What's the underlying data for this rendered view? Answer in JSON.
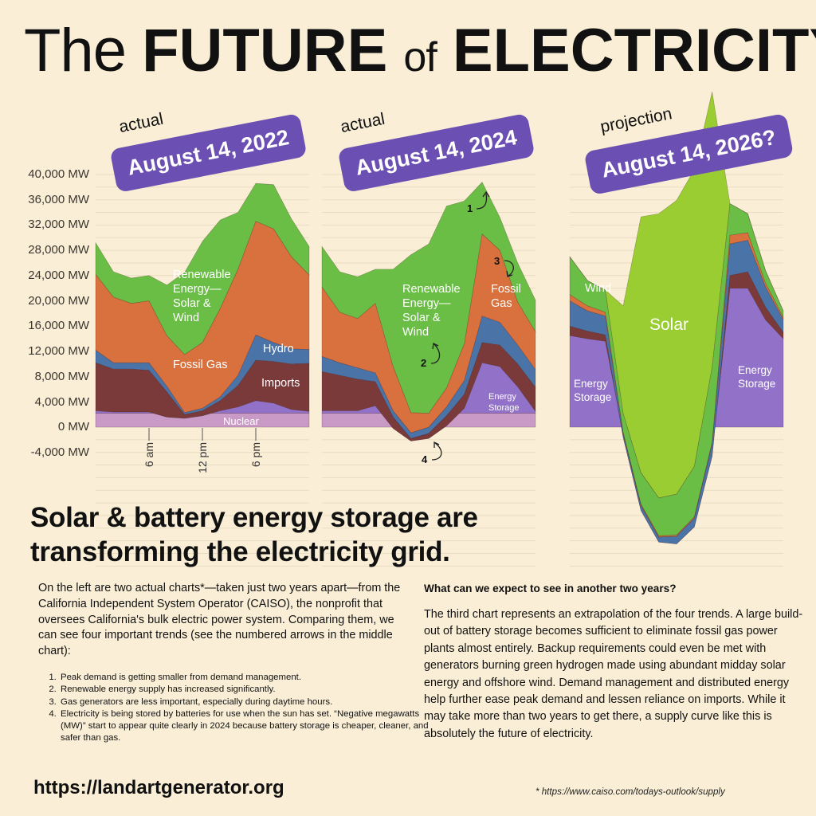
{
  "title": {
    "part1": "The",
    "part2": "FUTURE",
    "part3": "of",
    "part4": "ELECTRICITY"
  },
  "colors": {
    "background": "#faefd6",
    "gridline": "#e8dcc2",
    "badge": "#6b4fb3",
    "solar_wind": "#6abe45",
    "solar_light": "#9acd32",
    "fossil_gas": "#d9713f",
    "hydro": "#4a74a8",
    "imports": "#7b3a3a",
    "nuclear": "#c99ac6",
    "energy_storage": "#9272c8"
  },
  "y_axis": {
    "labels": [
      "40,000 MW",
      "36,000 MW",
      "32,000 MW",
      "28,000 MW",
      "24,000 MW",
      "20,000 MW",
      "16,000 MW",
      "12,000 MW",
      "8,000 MW",
      "4,000 MW",
      "0 MW",
      "-4,000 MW"
    ],
    "values": [
      40000,
      36000,
      32000,
      28000,
      24000,
      20000,
      16000,
      12000,
      8000,
      4000,
      0,
      -4000
    ]
  },
  "x_axis": {
    "labels": [
      "6 am",
      "12 pm",
      "6 pm"
    ]
  },
  "charts": [
    {
      "kind": "actual",
      "date": "August 14, 2022",
      "labels": {
        "renewable": "Renewable Energy— Solar & Wind",
        "fossil": "Fossil Gas",
        "hydro": "Hydro",
        "imports": "Imports",
        "nuclear": "Nuclear"
      }
    },
    {
      "kind": "actual",
      "date": "August 14, 2024",
      "labels": {
        "renewable": "Renewable Energy— Solar & Wind",
        "fossil": "Fossil Gas",
        "storage": "Energy Storage"
      },
      "annotations": [
        "1",
        "2",
        "3",
        "4"
      ]
    },
    {
      "kind": "projection",
      "date": "August 14, 2026?",
      "labels": {
        "wind": "Wind",
        "solar": "Solar",
        "storage_left": "Energy Storage",
        "storage_right": "Energy Storage"
      }
    }
  ],
  "chart_data": [
    {
      "type": "area",
      "title": "actual — August 14, 2022",
      "xlabel": "",
      "ylabel": "MW",
      "ylim": [
        -4000,
        40000
      ],
      "x": [
        0,
        2,
        4,
        6,
        8,
        10,
        12,
        14,
        16,
        18,
        20,
        22,
        24
      ],
      "x_ticks": {
        "6": "6 am",
        "12": "12 pm",
        "18": "6 pm"
      },
      "stacked": true,
      "series": [
        {
          "name": "Nuclear",
          "values": [
            2200,
            2200,
            2200,
            2200,
            2200,
            2200,
            2200,
            2200,
            2200,
            2200,
            2200,
            2200,
            2200
          ]
        },
        {
          "name": "Energy Storage / Batteries",
          "values": [
            400,
            200,
            200,
            200,
            -600,
            -800,
            -400,
            400,
            1000,
            2000,
            1600,
            600,
            300
          ]
        },
        {
          "name": "Imports",
          "values": [
            7600,
            6800,
            6800,
            6600,
            4000,
            600,
            800,
            1600,
            3400,
            6400,
            6600,
            7200,
            7600
          ]
        },
        {
          "name": "Hydro",
          "values": [
            2000,
            1000,
            1000,
            1200,
            900,
            300,
            400,
            600,
            1600,
            4000,
            3000,
            2400,
            2200
          ]
        },
        {
          "name": "Fossil Gas",
          "values": [
            12000,
            10400,
            9400,
            9800,
            8000,
            9200,
            10400,
            14000,
            16800,
            18000,
            18000,
            14600,
            11800
          ]
        },
        {
          "name": "Renewable Energy — Solar & Wind",
          "values": [
            5000,
            4000,
            4000,
            4000,
            8000,
            13000,
            16000,
            14000,
            9000,
            6000,
            7000,
            6000,
            4500
          ]
        }
      ],
      "annotations": [
        "Renewable Energy— Solar & Wind",
        "Fossil Gas",
        "Hydro",
        "Imports",
        "Nuclear"
      ]
    },
    {
      "type": "area",
      "title": "actual — August 14, 2024",
      "xlabel": "",
      "ylabel": "MW",
      "ylim": [
        -4000,
        40000
      ],
      "x": [
        0,
        2,
        4,
        6,
        8,
        10,
        12,
        14,
        16,
        18,
        20,
        22,
        24
      ],
      "stacked": true,
      "series": [
        {
          "name": "Nuclear",
          "values": [
            2200,
            2200,
            2200,
            2200,
            2200,
            2200,
            2200,
            2200,
            2200,
            2200,
            2200,
            2200,
            2200
          ]
        },
        {
          "name": "Energy Storage",
          "values": [
            400,
            400,
            400,
            1200,
            -2400,
            -4400,
            -4000,
            -2000,
            800,
            8000,
            7400,
            4200,
            300
          ]
        },
        {
          "name": "Imports",
          "values": [
            6200,
            5600,
            5000,
            3800,
            1800,
            400,
            800,
            1600,
            2200,
            3200,
            3400,
            3600,
            3800
          ]
        },
        {
          "name": "Hydro",
          "values": [
            2400,
            2000,
            1800,
            1400,
            1000,
            900,
            1000,
            1400,
            2200,
            4200,
            3600,
            3000,
            2800
          ]
        },
        {
          "name": "Fossil Gas",
          "values": [
            11000,
            8000,
            7800,
            11000,
            7000,
            3200,
            2200,
            3000,
            5800,
            13000,
            11400,
            6800,
            6000
          ]
        },
        {
          "name": "Renewable Energy — Solar & Wind",
          "values": [
            6400,
            6400,
            6600,
            5400,
            15400,
            25000,
            26800,
            28800,
            22600,
            8200,
            5200,
            6200,
            5000
          ]
        }
      ],
      "annotations": [
        {
          "id": "1",
          "text": "Peak demand is getting smaller"
        },
        {
          "id": "2",
          "text": "Renewable supply increased"
        },
        {
          "id": "3",
          "text": "Gas less important"
        },
        {
          "id": "4",
          "text": "Negative MW (battery charging)"
        }
      ]
    },
    {
      "type": "area",
      "title": "projection — August 14, 2026?",
      "xlabel": "",
      "ylabel": "MW",
      "ylim": [
        -20000,
        40000
      ],
      "x": [
        0,
        2,
        4,
        6,
        8,
        10,
        12,
        14,
        16,
        18,
        20,
        22,
        24
      ],
      "stacked": true,
      "series": [
        {
          "name": "Energy Storage",
          "values": [
            14500,
            14000,
            13600,
            -1000,
            -12000,
            -17000,
            -17500,
            -15000,
            -4000,
            22000,
            22000,
            17000,
            14000
          ]
        },
        {
          "name": "Imports",
          "values": [
            1500,
            1200,
            1000,
            -600,
            -1200,
            -1200,
            -1000,
            -800,
            -600,
            2000,
            2600,
            2000,
            1000
          ]
        },
        {
          "name": "Hydro",
          "values": [
            4000,
            3200,
            3000,
            600,
            800,
            800,
            1200,
            1400,
            2000,
            5000,
            5000,
            3200,
            2000
          ]
        },
        {
          "name": "Fossil Gas",
          "values": [
            1000,
            800,
            600,
            200,
            200,
            200,
            200,
            200,
            200,
            1400,
            1200,
            600,
            400
          ]
        },
        {
          "name": "Wind",
          "values": [
            6000,
            4000,
            3500,
            3000,
            5000,
            6000,
            6500,
            8000,
            12000,
            5000,
            3000,
            2000,
            1000
          ]
        },
        {
          "name": "Solar",
          "values": [
            0,
            0,
            0,
            17000,
            40500,
            45000,
            46500,
            47000,
            43500,
            0,
            0,
            0,
            0
          ]
        }
      ],
      "annotations": [
        "Wind",
        "Solar",
        "Energy Storage",
        "Energy Storage"
      ]
    }
  ],
  "headline": {
    "line1": "Solar & battery energy storage are",
    "line2": "transforming the electricity grid."
  },
  "intro": "On the left are two actual charts*—taken just two years apart—from the California Independent System Operator (CAISO), the nonprofit that oversees California's bulk electric power system. Comparing them, we can see four important trends (see the numbered arrows in the middle chart):",
  "trends": [
    "Peak demand is getting smaller from demand management.",
    "Renewable energy supply has increased significantly.",
    "Gas generators are less important, especially during daytime hours.",
    "Electricity is being stored by batteries for use when the sun has set. “Negative megawatts (MW)” start to appear quite clearly in 2024 because battery storage is cheaper, cleaner, and safer than gas."
  ],
  "outlook": {
    "heading": "What can we expect to see in another two years?",
    "body": "The third chart represents an extrapolation of the four trends. A large build-out of battery storage becomes sufficient to eliminate fossil gas power plants almost entirely. Backup requirements could even be met with generators burning green hydrogen made using abundant midday solar energy and offshore wind. Demand management and distributed energy help further ease peak demand and lessen reliance on imports. While it may take more than two years to get there, a supply curve like this is absolutely the future of electricity."
  },
  "footer": {
    "site": "https://landartgenerator.org",
    "footnote": "* https://www.caiso.com/todays-outlook/supply"
  }
}
